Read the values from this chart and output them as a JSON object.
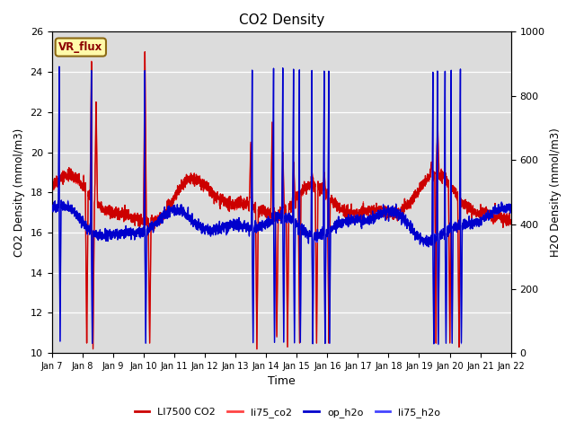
{
  "title": "CO2 Density",
  "xlabel": "Time",
  "ylabel_left": "CO2 Density (mmol/m3)",
  "ylabel_right": "H2O Density (mmol/m3)",
  "vr_flux_label": "VR_flux",
  "ylim_left": [
    10,
    26
  ],
  "ylim_right": [
    0,
    1000
  ],
  "yticks_left": [
    10,
    12,
    14,
    16,
    18,
    20,
    22,
    24,
    26
  ],
  "yticks_right": [
    0,
    200,
    400,
    600,
    800,
    1000
  ],
  "x_tick_labels": [
    "Jan 7",
    "Jan 8",
    "Jan 9",
    "Jan 10",
    "Jan 11",
    "Jan 12",
    "Jan 13",
    "Jan 14",
    "Jan 15",
    "Jan 16",
    "Jan 17",
    "Jan 18",
    "Jan 19",
    "Jan 20",
    "Jan 21",
    "Jan 22"
  ],
  "legend_labels": [
    "LI7500 CO2",
    "li75_co2",
    "op_h2o",
    "li75_h2o"
  ],
  "colors": {
    "li7500_co2": "#CC0000",
    "li75_co2": "#FF4444",
    "op_h2o": "#0000CC",
    "li75_h2o": "#4444FF"
  },
  "bg_color": "#DCDCDC",
  "fig_bg_color": "#FFFFFF"
}
